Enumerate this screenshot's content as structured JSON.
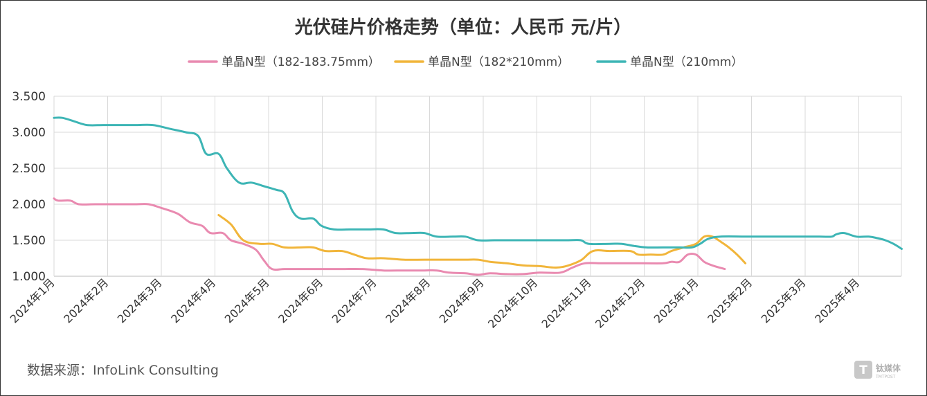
{
  "chart_data": {
    "type": "line",
    "title": "光伏硅片价格走势（单位：人民币 元/片）",
    "xlabel": "",
    "ylabel": "",
    "ylim": [
      1.0,
      3.5
    ],
    "yticks": [
      "3.500",
      "3.000",
      "2.500",
      "2.000",
      "1.500",
      "1.000"
    ],
    "ytick_values": [
      3.5,
      3.0,
      2.5,
      2.0,
      1.5,
      1.0
    ],
    "categories": [
      "2024年1月",
      "2024年2月",
      "2024年3月",
      "2024年4月",
      "2024年5月",
      "2024年6月",
      "2024年7月",
      "2024年8月",
      "2024年9月",
      "2024年10月",
      "2024年11月",
      "2024年12月",
      "2025年1月",
      "2025年2月",
      "2025年3月",
      "2025年4月"
    ],
    "x_max": 15.8,
    "grid": true,
    "legend_position": "top-center",
    "series": [
      {
        "name": "单晶N型（182-183.75mm）",
        "color": "#e98ab0",
        "points": [
          [
            0.0,
            2.08
          ],
          [
            0.1,
            2.05
          ],
          [
            0.4,
            2.05
          ],
          [
            0.6,
            2.0
          ],
          [
            1.0,
            2.0
          ],
          [
            1.5,
            2.0
          ],
          [
            2.0,
            2.0
          ],
          [
            2.3,
            2.0
          ],
          [
            2.6,
            1.95
          ],
          [
            3.0,
            1.87
          ],
          [
            3.3,
            1.75
          ],
          [
            3.6,
            1.7
          ],
          [
            3.8,
            1.6
          ],
          [
            4.1,
            1.6
          ],
          [
            4.3,
            1.5
          ],
          [
            4.6,
            1.45
          ],
          [
            4.9,
            1.37
          ],
          [
            5.1,
            1.22
          ],
          [
            5.3,
            1.1
          ],
          [
            5.6,
            1.1
          ],
          [
            6.0,
            1.1
          ],
          [
            6.5,
            1.1
          ],
          [
            7.0,
            1.1
          ],
          [
            7.5,
            1.1
          ],
          [
            8.0,
            1.08
          ],
          [
            8.5,
            1.08
          ],
          [
            9.0,
            1.08
          ],
          [
            9.3,
            1.08
          ],
          [
            9.6,
            1.05
          ],
          [
            10.0,
            1.04
          ],
          [
            10.3,
            1.02
          ],
          [
            10.6,
            1.04
          ],
          [
            11.0,
            1.03
          ],
          [
            11.4,
            1.03
          ],
          [
            11.8,
            1.05
          ],
          [
            12.3,
            1.05
          ],
          [
            12.6,
            1.12
          ],
          [
            12.9,
            1.18
          ],
          [
            13.3,
            1.18
          ],
          [
            13.8,
            1.18
          ],
          [
            14.3,
            1.18
          ],
          [
            14.8,
            1.18
          ],
          [
            15.0,
            1.2
          ],
          [
            15.2,
            1.2
          ],
          [
            15.4,
            1.3
          ],
          [
            15.6,
            1.3
          ],
          [
            15.8,
            1.2
          ],
          [
            16.0,
            1.15
          ],
          [
            16.3,
            1.1
          ]
        ]
      },
      {
        "name": "单晶N型（182*210mm）",
        "color": "#f1b53a",
        "points": [
          [
            4.0,
            1.85
          ],
          [
            4.3,
            1.72
          ],
          [
            4.6,
            1.5
          ],
          [
            5.0,
            1.45
          ],
          [
            5.3,
            1.45
          ],
          [
            5.6,
            1.4
          ],
          [
            6.0,
            1.4
          ],
          [
            6.3,
            1.4
          ],
          [
            6.6,
            1.35
          ],
          [
            7.0,
            1.35
          ],
          [
            7.3,
            1.3
          ],
          [
            7.6,
            1.25
          ],
          [
            8.0,
            1.25
          ],
          [
            8.5,
            1.23
          ],
          [
            9.0,
            1.23
          ],
          [
            9.5,
            1.23
          ],
          [
            10.0,
            1.23
          ],
          [
            10.3,
            1.23
          ],
          [
            10.6,
            1.2
          ],
          [
            11.0,
            1.18
          ],
          [
            11.4,
            1.15
          ],
          [
            11.8,
            1.14
          ],
          [
            12.2,
            1.12
          ],
          [
            12.5,
            1.15
          ],
          [
            12.8,
            1.22
          ],
          [
            13.1,
            1.35
          ],
          [
            13.5,
            1.35
          ],
          [
            14.0,
            1.35
          ],
          [
            14.2,
            1.3
          ],
          [
            14.5,
            1.3
          ],
          [
            14.8,
            1.3
          ],
          [
            15.0,
            1.35
          ],
          [
            15.3,
            1.4
          ],
          [
            15.6,
            1.45
          ],
          [
            15.8,
            1.55
          ],
          [
            16.0,
            1.55
          ],
          [
            16.2,
            1.48
          ],
          [
            16.4,
            1.4
          ],
          [
            16.6,
            1.3
          ],
          [
            16.8,
            1.18
          ]
        ]
      },
      {
        "name": "单晶N型（210mm）",
        "color": "#3db5b5",
        "points": [
          [
            0.0,
            3.2
          ],
          [
            0.2,
            3.2
          ],
          [
            0.5,
            3.15
          ],
          [
            0.8,
            3.1
          ],
          [
            1.2,
            3.1
          ],
          [
            1.6,
            3.1
          ],
          [
            2.0,
            3.1
          ],
          [
            2.4,
            3.1
          ],
          [
            2.8,
            3.05
          ],
          [
            3.2,
            3.0
          ],
          [
            3.5,
            2.95
          ],
          [
            3.7,
            2.7
          ],
          [
            4.0,
            2.7
          ],
          [
            4.2,
            2.5
          ],
          [
            4.5,
            2.3
          ],
          [
            4.8,
            2.3
          ],
          [
            5.1,
            2.25
          ],
          [
            5.4,
            2.2
          ],
          [
            5.6,
            2.15
          ],
          [
            5.8,
            1.9
          ],
          [
            6.0,
            1.8
          ],
          [
            6.3,
            1.8
          ],
          [
            6.5,
            1.7
          ],
          [
            6.8,
            1.65
          ],
          [
            7.2,
            1.65
          ],
          [
            7.6,
            1.65
          ],
          [
            8.0,
            1.65
          ],
          [
            8.3,
            1.6
          ],
          [
            8.7,
            1.6
          ],
          [
            9.0,
            1.6
          ],
          [
            9.3,
            1.55
          ],
          [
            9.7,
            1.55
          ],
          [
            10.0,
            1.55
          ],
          [
            10.3,
            1.5
          ],
          [
            10.7,
            1.5
          ],
          [
            11.0,
            1.5
          ],
          [
            11.5,
            1.5
          ],
          [
            12.0,
            1.5
          ],
          [
            12.5,
            1.5
          ],
          [
            12.8,
            1.5
          ],
          [
            13.0,
            1.45
          ],
          [
            13.5,
            1.45
          ],
          [
            13.8,
            1.45
          ],
          [
            14.1,
            1.42
          ],
          [
            14.4,
            1.4
          ],
          [
            14.8,
            1.4
          ],
          [
            15.2,
            1.4
          ],
          [
            15.5,
            1.4
          ],
          [
            15.7,
            1.45
          ],
          [
            15.9,
            1.52
          ],
          [
            16.2,
            1.55
          ],
          [
            16.8,
            1.55
          ],
          [
            17.4,
            1.55
          ],
          [
            18.0,
            1.55
          ],
          [
            18.6,
            1.55
          ],
          [
            18.9,
            1.55
          ],
          [
            19.0,
            1.58
          ],
          [
            19.2,
            1.6
          ],
          [
            19.5,
            1.55
          ],
          [
            19.8,
            1.55
          ],
          [
            20.0,
            1.53
          ],
          [
            20.2,
            1.5
          ],
          [
            20.4,
            1.45
          ],
          [
            20.6,
            1.38
          ]
        ]
      }
    ]
  },
  "source_text": "数据来源：InfoLink Consulting",
  "watermark": {
    "logo_letter": "T",
    "name": "钛媒体",
    "sub": "TMTPOST"
  }
}
